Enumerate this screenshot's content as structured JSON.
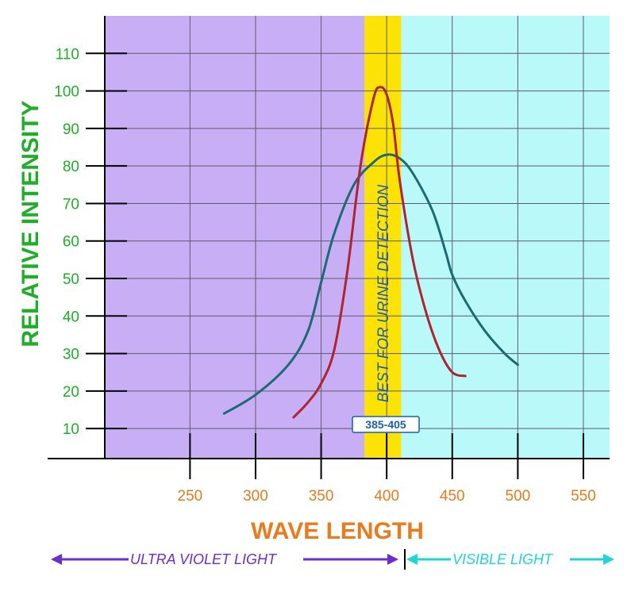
{
  "chart_data": {
    "type": "line",
    "xlabel": "WAVE LENGTH",
    "ylabel": "RELATIVE INTENSITY",
    "xlim": [
      185,
      570
    ],
    "ylim": [
      2,
      120
    ],
    "x_ticks": [
      250,
      300,
      350,
      400,
      450,
      500,
      550
    ],
    "y_ticks": [
      10,
      20,
      30,
      40,
      50,
      60,
      70,
      80,
      90,
      100,
      110
    ],
    "grid": true,
    "regions": [
      {
        "name": "ultra-violet",
        "x": [
          185,
          411
        ],
        "color": "#c8aef5"
      },
      {
        "name": "visible",
        "x": [
          411,
          570
        ],
        "color": "#b9f9f9"
      },
      {
        "name": "best-band",
        "x": [
          383,
          411
        ],
        "color": "#fde305",
        "label": "BEST FOR URINE DETECTION"
      }
    ],
    "band_range_label": "385-405",
    "series": [
      {
        "color": "#1d6a73",
        "x": [
          276,
          300,
          325,
          340,
          350,
          360,
          375,
          390,
          400,
          410,
          420,
          435,
          445,
          450,
          460,
          475,
          490,
          500
        ],
        "y": [
          14,
          19,
          27,
          36,
          49,
          62,
          75,
          81,
          83,
          82,
          78,
          68,
          57,
          51,
          44,
          36,
          30,
          27
        ]
      },
      {
        "color": "#b0242e",
        "x": [
          329,
          340,
          350,
          360,
          370,
          380,
          390,
          395,
          400,
          405,
          410,
          420,
          430,
          440,
          450,
          460
        ],
        "y": [
          13,
          17,
          22,
          31,
          52,
          80,
          98,
          101,
          99,
          91,
          76,
          55,
          41,
          31,
          25,
          24
        ]
      }
    ]
  },
  "footer": {
    "uv_label": "ULTRA VIOLET LIGHT",
    "visible_label": "VISIBLE LIGHT",
    "colors": {
      "uv": "#6a2ed1",
      "visible": "#1fd6d6"
    }
  }
}
